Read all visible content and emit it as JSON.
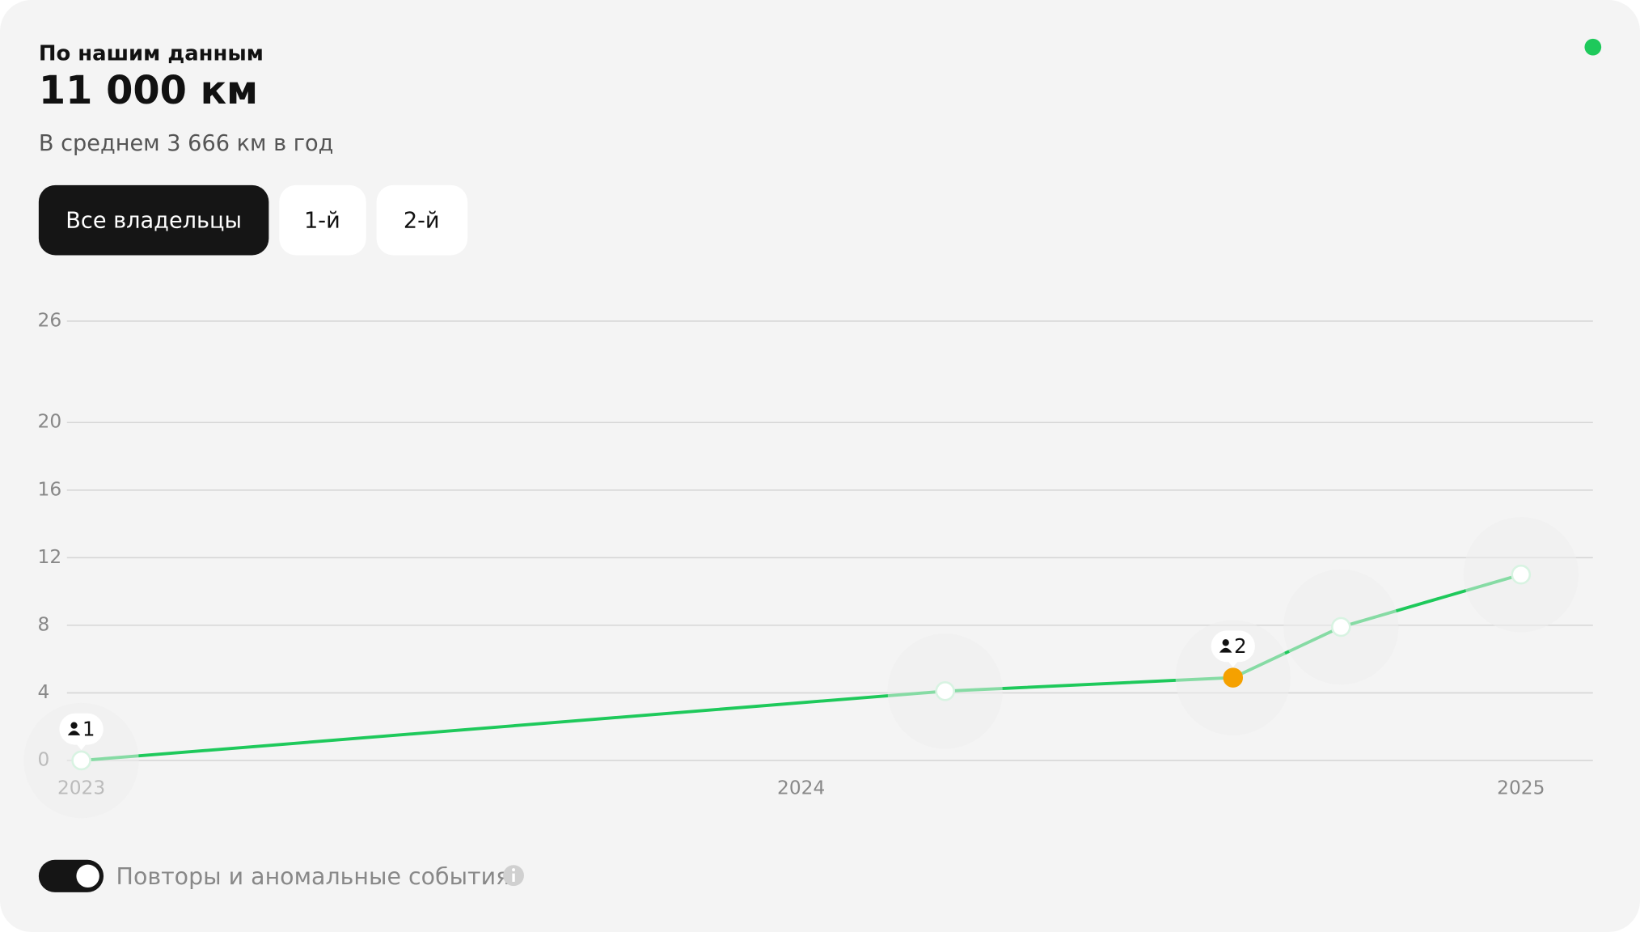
{
  "header": {
    "title": "По нашим данным",
    "value": "11 000 км",
    "subtitle": "В среднем 3 666 км в год"
  },
  "tabs": [
    "Все владельцы",
    "1-й",
    "2-й"
  ],
  "toggle_label": "Повторы и аномальные события",
  "chart_data": {
    "type": "line",
    "x": [
      2023.0,
      2024.2,
      2024.6,
      2024.75,
      2025.0
    ],
    "series": [
      {
        "color": "#1ec95b",
        "values": [
          0,
          4.1,
          4.9,
          7.9,
          11.0
        ],
        "point_colors": [
          "#ffffff",
          "#ffffff",
          "#f5a100",
          "#ffffff",
          "#ffffff"
        ]
      }
    ],
    "owners": [
      {
        "label": "1",
        "x": 2023.0,
        "y": 0
      },
      {
        "label": "2",
        "x": 2024.6,
        "y": 4.9
      }
    ],
    "xlim": [
      2022.98,
      2025.1
    ],
    "xticks": [
      2023,
      2024,
      2025
    ],
    "ylim": [
      0,
      26
    ],
    "yticks": [
      0,
      4,
      8,
      12,
      16,
      20,
      26
    ],
    "grid": true
  }
}
